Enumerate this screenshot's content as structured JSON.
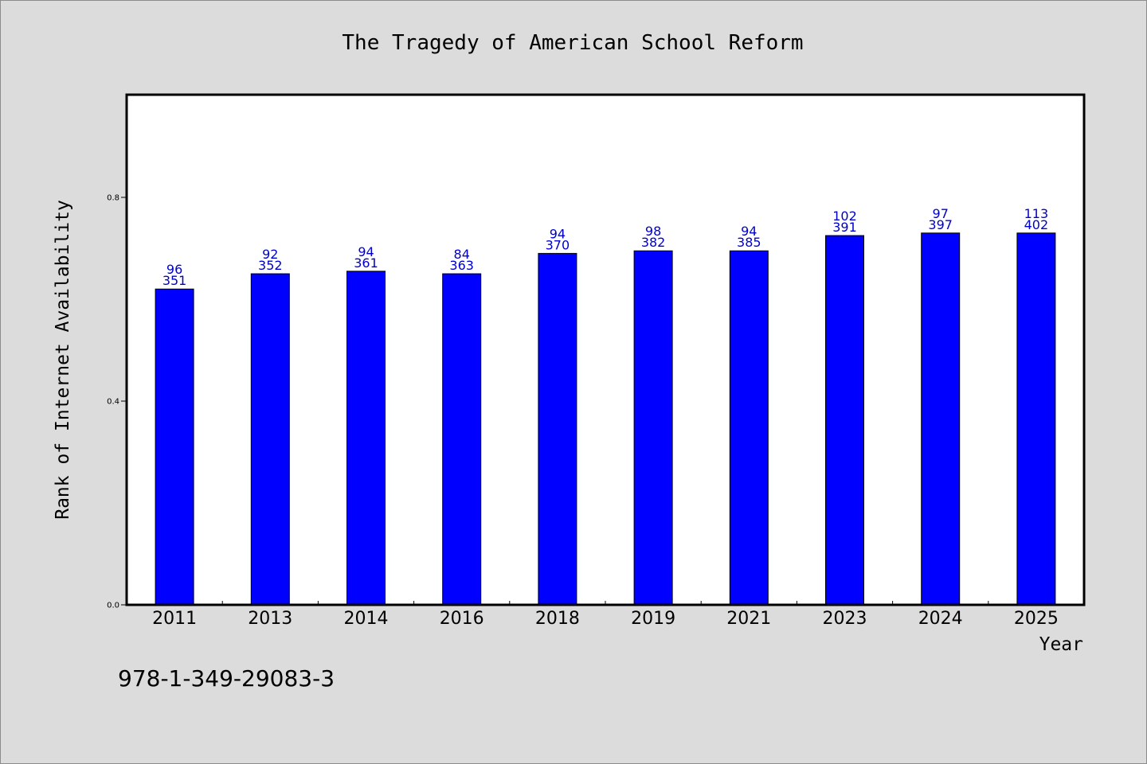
{
  "chart_data": {
    "type": "bar",
    "title": "The Tragedy of American School Reform",
    "xlabel": "Year",
    "ylabel": "Rank of Internet Availability",
    "categories": [
      "2011",
      "2013",
      "2014",
      "2016",
      "2018",
      "2019",
      "2021",
      "2023",
      "2024",
      "2025"
    ],
    "values": [
      0.62,
      0.65,
      0.655,
      0.65,
      0.69,
      0.695,
      0.695,
      0.725,
      0.73,
      0.73
    ],
    "labels_top": [
      "96",
      "92",
      "94",
      "84",
      "94",
      "98",
      "94",
      "102",
      "97",
      "113"
    ],
    "labels_bottom": [
      "351",
      "352",
      "361",
      "363",
      "370",
      "382",
      "385",
      "391",
      "397",
      "402"
    ],
    "yticks": [
      0.0,
      0.4,
      0.8
    ],
    "ytick_labels": [
      "0.0",
      "0.4",
      "0.8"
    ],
    "ylim": [
      0,
      1.0
    ],
    "grid": false,
    "bar_color": "#0000ff",
    "label_color": "#0000cc",
    "background": "#dcdcdc"
  },
  "footer": {
    "isbn": "978-1-349-29083-3"
  }
}
